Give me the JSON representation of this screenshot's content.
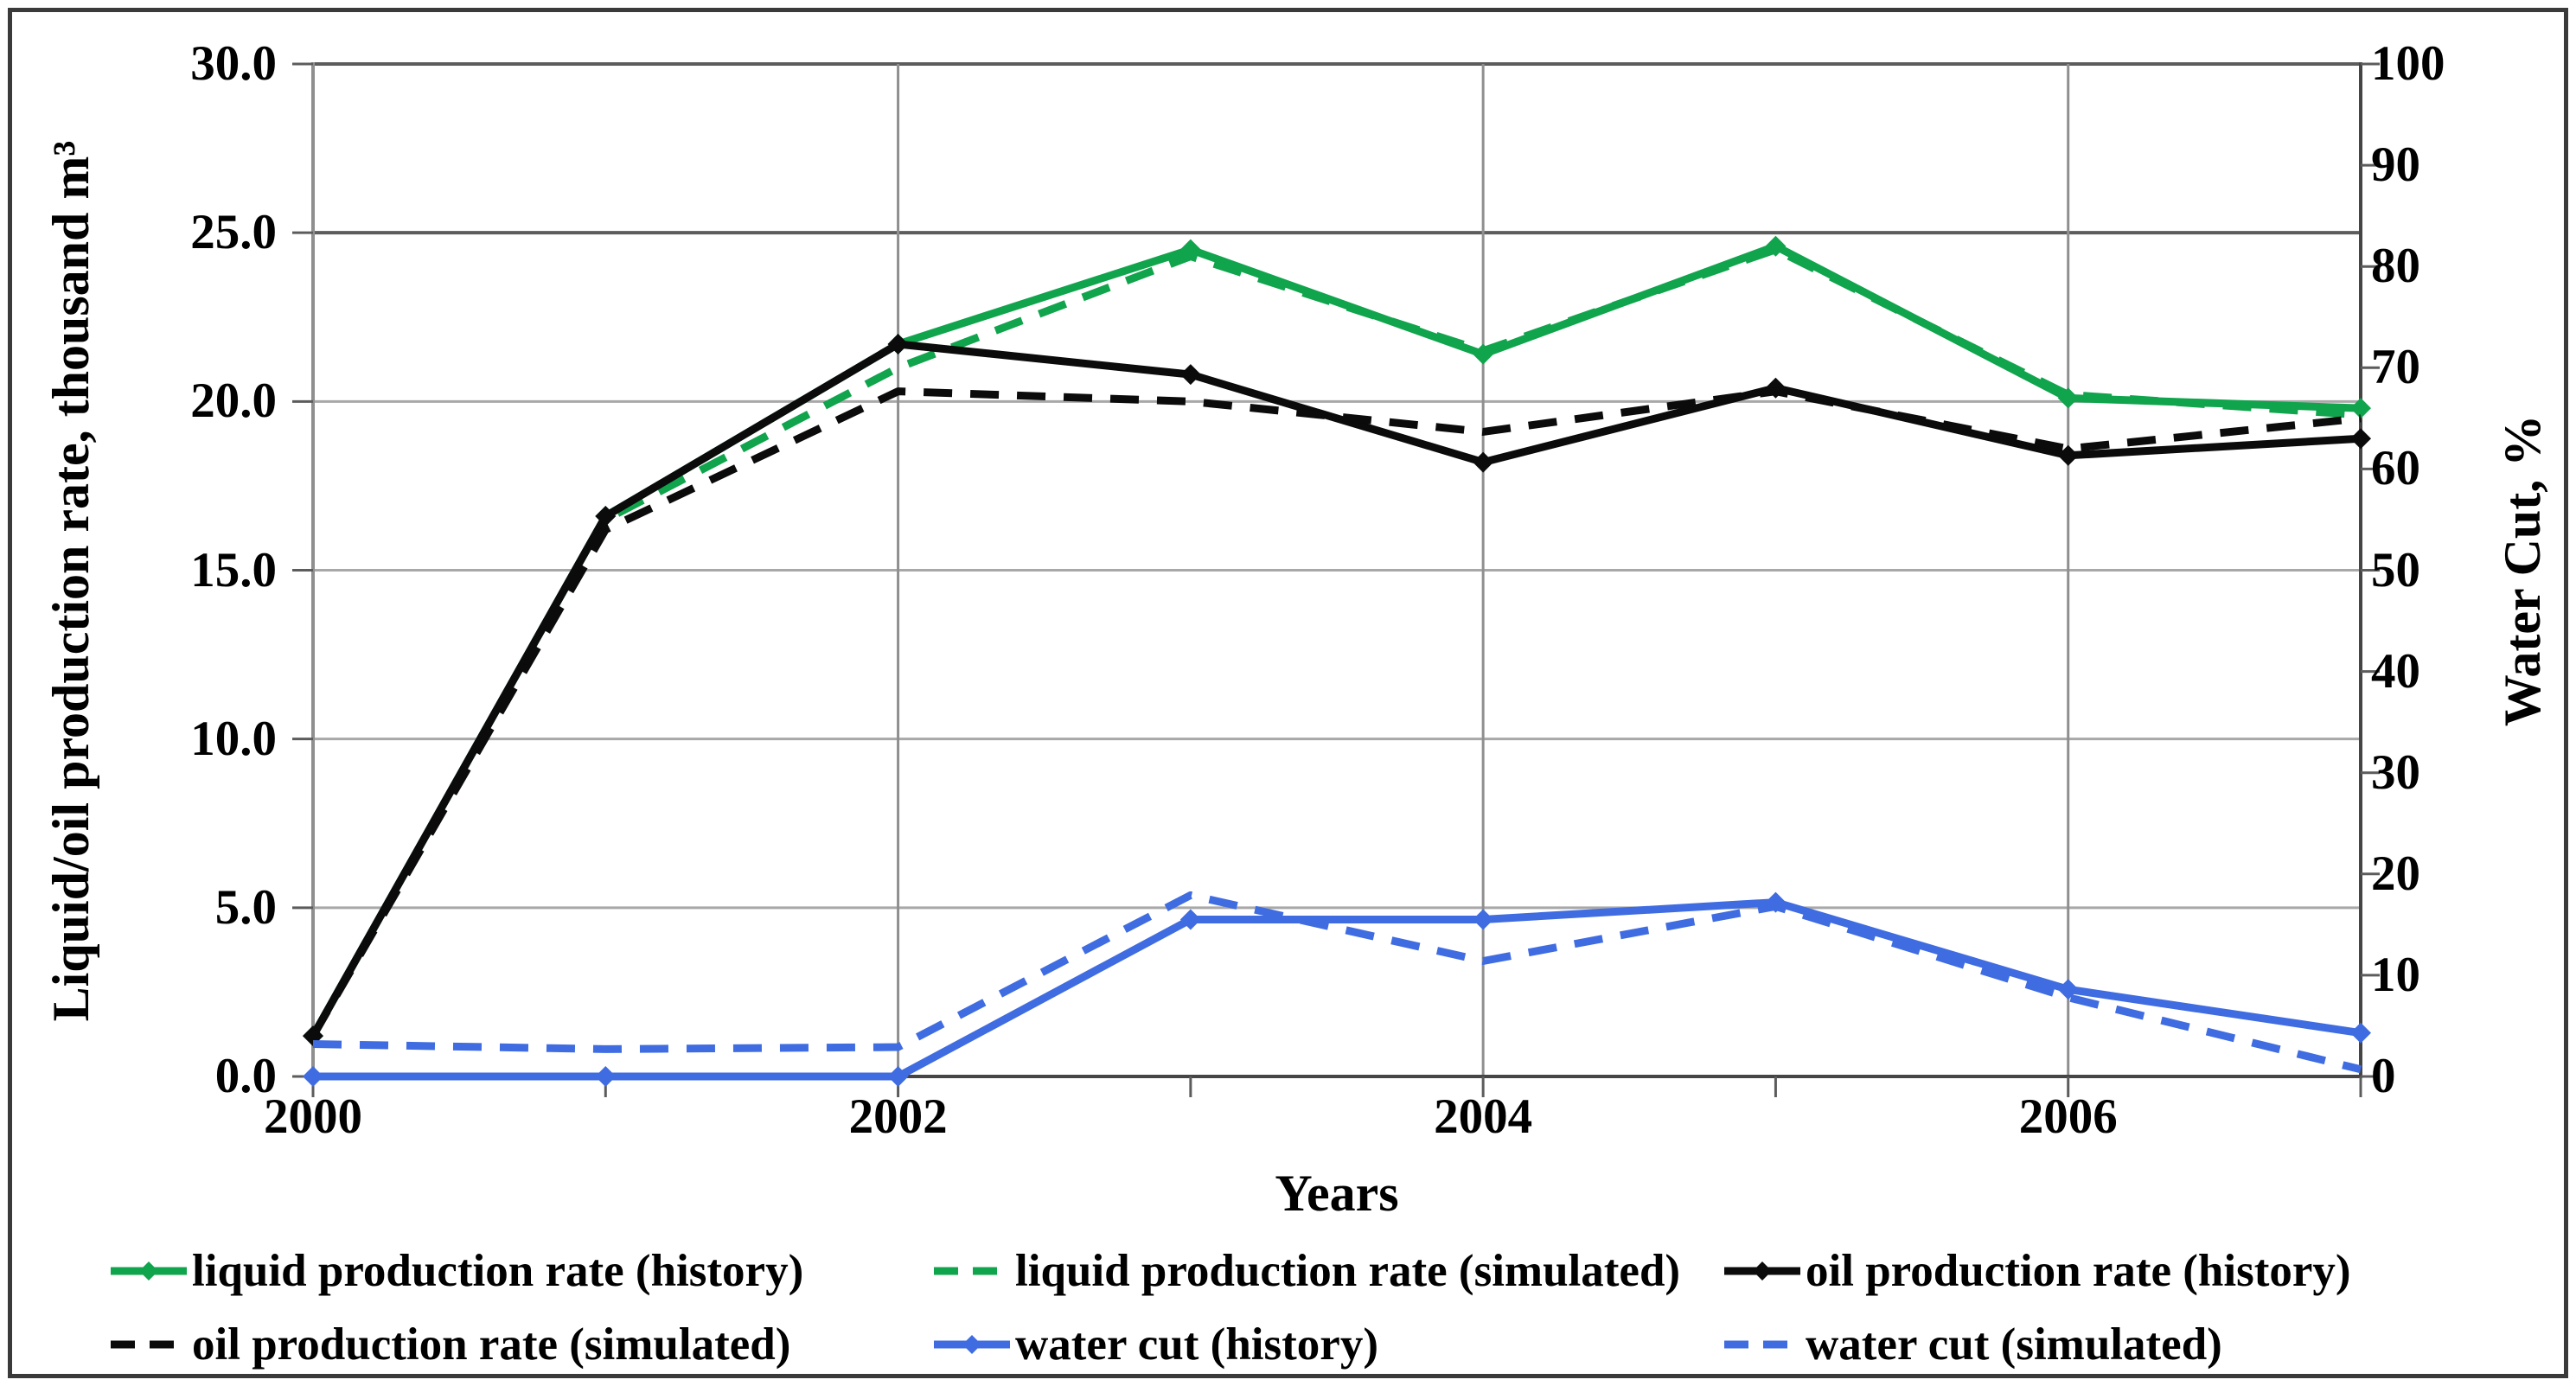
{
  "figure": {
    "background": "#ffffff",
    "border_color": "#3a3a3a"
  },
  "colors": {
    "liquid_green": "#10a44c",
    "oil_black": "#0b0b0b",
    "water_blue": "#3f6ce1",
    "gridline_light": "#a8a8a8",
    "gridline_dark": "#5c5c5c",
    "axis_gray": "#8f8f8f",
    "axis_dark": "#454545"
  },
  "chart_data": {
    "type": "line",
    "title": "",
    "xlabel": "Years",
    "ylabel_left": "Liquid/oil production rate, thousand m³",
    "ylabel_right": "Water Cut, %",
    "x": [
      2000,
      2001,
      2002,
      2003,
      2004,
      2005,
      2006,
      2007
    ],
    "xlim": [
      2000,
      2007
    ],
    "left_axis": {
      "min": 0,
      "max": 30,
      "tick_step": 5,
      "tick_values": [
        0,
        5,
        10,
        15,
        20,
        25,
        30
      ],
      "tick_labels": [
        "0.0",
        "5.0",
        "10.0",
        "15.0",
        "20.0",
        "25.0",
        "30.0"
      ]
    },
    "right_axis": {
      "min": 0,
      "max": 100,
      "tick_step": 10,
      "tick_values": [
        0,
        10,
        20,
        30,
        40,
        50,
        60,
        70,
        80,
        90,
        100
      ],
      "tick_labels": [
        "0",
        "10",
        "20",
        "30",
        "40",
        "50",
        "60",
        "70",
        "80",
        "90",
        "100"
      ]
    },
    "x_ticks": {
      "labeled_years": [
        2000,
        2002,
        2004,
        2006
      ],
      "labels": [
        "2000",
        "2002",
        "2004",
        "2006"
      ],
      "minor_tick_years": [
        2000,
        2001,
        2002,
        2003,
        2004,
        2005,
        2006,
        2007
      ]
    },
    "gridlines": {
      "vertical_years": [
        2002,
        2004,
        2006
      ],
      "horizontal_light_values": [
        5,
        10,
        15,
        20
      ],
      "horizontal_dark_values": [
        25,
        30
      ],
      "grid_on": true
    },
    "legend_position": "bottom",
    "series": [
      {
        "id": "liquid-production-rate-history",
        "label": "liquid production rate (history)",
        "color": "#10a44c",
        "axis": "left",
        "dash": false,
        "marker": true,
        "values": [
          1.2,
          16.6,
          21.7,
          24.5,
          21.4,
          24.6,
          20.1,
          19.8
        ]
      },
      {
        "id": "liquid-production-rate-simulated",
        "label": "liquid production rate (simulated)",
        "color": "#10a44c",
        "axis": "left",
        "dash": true,
        "marker": false,
        "values": [
          1.2,
          16.5,
          21.0,
          24.3,
          21.5,
          24.5,
          20.2,
          19.6
        ]
      },
      {
        "id": "oil-production-rate-history",
        "label": "oil production rate (history)",
        "color": "#0b0b0b",
        "axis": "left",
        "dash": false,
        "marker": true,
        "values": [
          1.2,
          16.6,
          21.7,
          20.8,
          18.2,
          20.4,
          18.4,
          18.9
        ]
      },
      {
        "id": "oil-production-rate-simulated",
        "label": "oil production rate (simulated)",
        "color": "#0b0b0b",
        "axis": "left",
        "dash": true,
        "marker": false,
        "values": [
          1.2,
          16.2,
          20.3,
          20.0,
          19.1,
          20.3,
          18.6,
          19.5
        ]
      },
      {
        "id": "water-cut-history",
        "label": "water cut (history)",
        "color": "#3f6ce1",
        "axis": "right",
        "dash": false,
        "marker": true,
        "values": [
          0.0,
          0.0,
          0.0,
          15.5,
          15.5,
          17.2,
          8.6,
          4.3
        ]
      },
      {
        "id": "water-cut-simulated",
        "label": "water cut (simulated)",
        "color": "#3f6ce1",
        "axis": "right",
        "dash": true,
        "marker": false,
        "values": [
          3.2,
          2.7,
          2.9,
          17.9,
          11.4,
          16.8,
          7.8,
          0.7
        ]
      }
    ]
  }
}
